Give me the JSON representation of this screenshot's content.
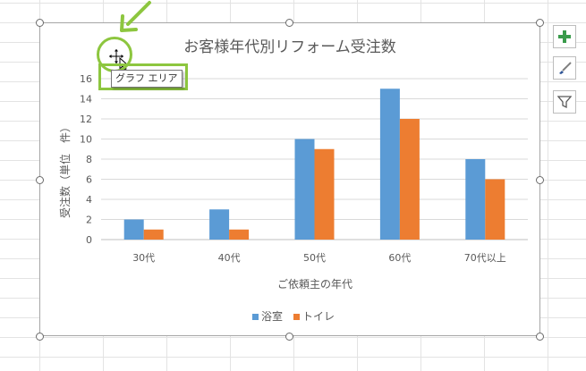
{
  "tooltip": {
    "text": "グラフ エリア"
  },
  "side_buttons": {
    "elements_icon": "plus-icon",
    "styles_icon": "brush-icon",
    "filter_icon": "funnel-icon"
  },
  "colors": {
    "bath": "#5b9bd5",
    "toilet": "#ed7d31",
    "highlight": "#8dc63f",
    "add_button": "#3a9b4b"
  },
  "chart_data": {
    "type": "bar",
    "title": "お客様年代別リフォーム受注数",
    "xlabel": "ご依頼主の年代",
    "ylabel": "受注数（単位　件）",
    "categories": [
      "30代",
      "40代",
      "50代",
      "60代",
      "70代以上"
    ],
    "ylim": [
      0,
      16
    ],
    "yticks": [
      "0",
      "2",
      "4",
      "6",
      "8",
      "10",
      "12",
      "14",
      "16"
    ],
    "grid": true,
    "legend_position": "bottom",
    "series": [
      {
        "name": "浴室",
        "values": [
          2,
          3,
          10,
          15,
          8
        ],
        "color": "#5b9bd5"
      },
      {
        "name": "トイレ",
        "values": [
          1,
          1,
          9,
          12,
          6
        ],
        "color": "#ed7d31"
      }
    ]
  }
}
